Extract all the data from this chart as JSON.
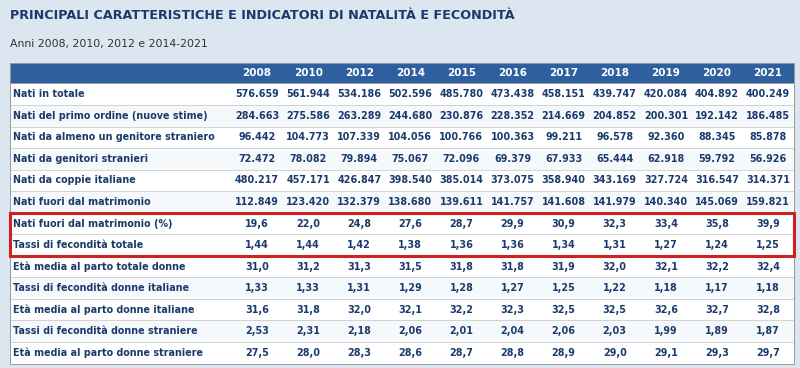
{
  "title": "PRINCIPALI CARATTERISTICHE E INDICATORI DI NATALITÀ E FECONDITÀ",
  "subtitle": "Anni 2008, 2010, 2012 e 2014-2021",
  "title_color": "#1a3a6b",
  "subtitle_color": "#333333",
  "bg_color": "#dce6f1",
  "col_header_bg": "#2e5f9e",
  "col_header_color": "#ffffff",
  "highlight_border_color": "#cc2222",
  "normal_row_bg": "#ffffff",
  "highlight_row_bg": "#ffffff",
  "label_color": "#1a3a6b",
  "value_color": "#1a3a6b",
  "separator_color": "#bbbbbb",
  "years": [
    "2008",
    "2010",
    "2012",
    "2014",
    "2015",
    "2016",
    "2017",
    "2018",
    "2019",
    "2020",
    "2021"
  ],
  "rows": [
    {
      "label": "Nati in totale",
      "values": [
        "576.659",
        "561.944",
        "534.186",
        "502.596",
        "485.780",
        "473.438",
        "458.151",
        "439.747",
        "420.084",
        "404.892",
        "400.249"
      ],
      "highlight": false
    },
    {
      "label": "Nati del primo ordine (nuove stime)",
      "values": [
        "284.663",
        "275.586",
        "263.289",
        "244.680",
        "230.876",
        "228.352",
        "214.669",
        "204.852",
        "200.301",
        "192.142",
        "186.485"
      ],
      "highlight": false
    },
    {
      "label": "Nati da almeno un genitore straniero",
      "values": [
        "96.442",
        "104.773",
        "107.339",
        "104.056",
        "100.766",
        "100.363",
        "99.211",
        "96.578",
        "92.360",
        "88.345",
        "85.878"
      ],
      "highlight": false
    },
    {
      "label": "Nati da genitori stranieri",
      "values": [
        "72.472",
        "78.082",
        "79.894",
        "75.067",
        "72.096",
        "69.379",
        "67.933",
        "65.444",
        "62.918",
        "59.792",
        "56.926"
      ],
      "highlight": false
    },
    {
      "label": "Nati da coppie italiane",
      "values": [
        "480.217",
        "457.171",
        "426.847",
        "398.540",
        "385.014",
        "373.075",
        "358.940",
        "343.169",
        "327.724",
        "316.547",
        "314.371"
      ],
      "highlight": false
    },
    {
      "label": "Nati fuori dal matrimonio",
      "values": [
        "112.849",
        "123.420",
        "132.379",
        "138.680",
        "139.611",
        "141.757",
        "141.608",
        "141.979",
        "140.340",
        "145.069",
        "159.821"
      ],
      "highlight": false
    },
    {
      "label": "Nati fuori dal matrimonio (%)",
      "values": [
        "19,6",
        "22,0",
        "24,8",
        "27,6",
        "28,7",
        "29,9",
        "30,9",
        "32,3",
        "33,4",
        "35,8",
        "39,9"
      ],
      "highlight": true
    },
    {
      "label": "Tassi di fecondità totale",
      "values": [
        "1,44",
        "1,44",
        "1,42",
        "1,38",
        "1,36",
        "1,36",
        "1,34",
        "1,31",
        "1,27",
        "1,24",
        "1,25"
      ],
      "highlight": true
    },
    {
      "label": "Età media al parto totale donne",
      "values": [
        "31,0",
        "31,2",
        "31,3",
        "31,5",
        "31,8",
        "31,8",
        "31,9",
        "32,0",
        "32,1",
        "32,2",
        "32,4"
      ],
      "highlight": false
    },
    {
      "label": "Tassi di fecondità donne italiane",
      "values": [
        "1,33",
        "1,33",
        "1,31",
        "1,29",
        "1,28",
        "1,27",
        "1,25",
        "1,22",
        "1,18",
        "1,17",
        "1,18"
      ],
      "highlight": false
    },
    {
      "label": "Età media al parto donne italiane",
      "values": [
        "31,6",
        "31,8",
        "32,0",
        "32,1",
        "32,2",
        "32,3",
        "32,5",
        "32,5",
        "32,6",
        "32,7",
        "32,8"
      ],
      "highlight": false
    },
    {
      "label": "Tassi di fecondità donne straniere",
      "values": [
        "2,53",
        "2,31",
        "2,18",
        "2,06",
        "2,01",
        "2,04",
        "2,06",
        "2,03",
        "1,99",
        "1,89",
        "1,87"
      ],
      "highlight": false
    },
    {
      "label": "Età media al parto donne straniere",
      "values": [
        "27,5",
        "28,0",
        "28,3",
        "28,6",
        "28,7",
        "28,8",
        "28,9",
        "29,0",
        "29,1",
        "29,3",
        "29,7"
      ],
      "highlight": false
    }
  ],
  "title_fontsize": 9.2,
  "subtitle_fontsize": 7.8,
  "header_fontsize": 7.5,
  "cell_fontsize": 6.9
}
